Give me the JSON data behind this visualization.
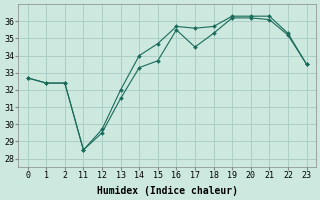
{
  "xlabel": "Humidex (Indice chaleur)",
  "background_color": "#cce8df",
  "line_color": "#1a6b5a",
  "grid_color": "#aacfc5",
  "series1_y": [
    32.7,
    32.4,
    32.4,
    28.5,
    29.5,
    31.5,
    33.3,
    33.7,
    35.5,
    34.5,
    35.3,
    36.2,
    36.2,
    36.1,
    35.2,
    33.5
  ],
  "series2_y": [
    32.7,
    32.4,
    32.4,
    28.5,
    29.7,
    32.0,
    34.0,
    34.7,
    35.7,
    35.6,
    35.7,
    36.3,
    36.3,
    36.3,
    35.3,
    33.5
  ],
  "xlabels": [
    "0",
    "1",
    "2",
    "11",
    "12",
    "13",
    "14",
    "15",
    "16",
    "17",
    "18",
    "19",
    "20",
    "21",
    "22",
    "23"
  ],
  "ylim": [
    27.5,
    37.0
  ],
  "yticks": [
    28,
    29,
    30,
    31,
    32,
    33,
    34,
    35,
    36
  ],
  "axis_fontsize": 7,
  "tick_fontsize": 6
}
